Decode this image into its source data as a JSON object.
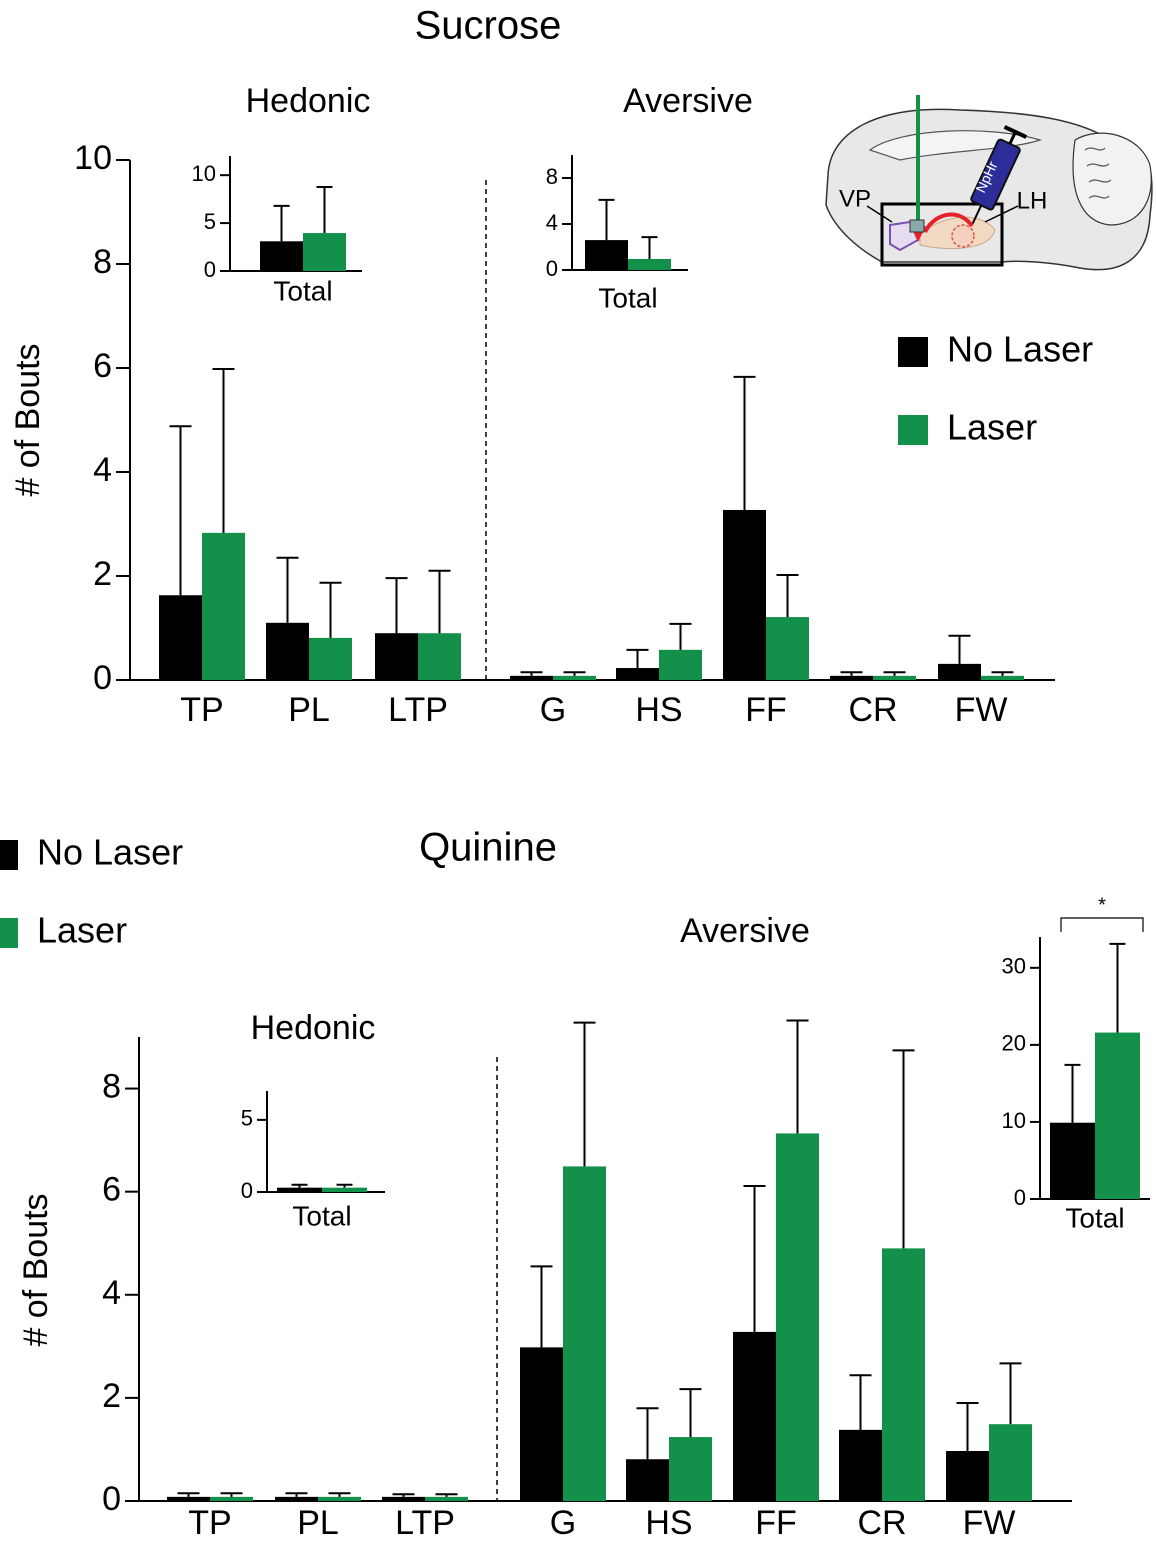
{
  "chart_data": [
    {
      "type": "bar",
      "title": "Sucrose",
      "ylabel": "# of Bouts",
      "groups": [
        {
          "label": "Hedonic",
          "categories": [
            "TP",
            "PL",
            "LTP"
          ]
        },
        {
          "label": "Aversive",
          "categories": [
            "G",
            "HS",
            "FF",
            "CR",
            "FW"
          ]
        }
      ],
      "series": [
        {
          "name": "No Laser",
          "color": "#000000",
          "values": [
            1.63,
            1.1,
            0.9,
            0.08,
            0.23,
            3.27,
            0.08,
            0.31
          ],
          "errors": [
            3.25,
            1.25,
            1.06,
            0.07,
            0.35,
            2.56,
            0.07,
            0.54
          ]
        },
        {
          "name": "Laser",
          "color": "#13904a",
          "values": [
            2.83,
            0.81,
            0.9,
            0.08,
            0.58,
            1.21,
            0.08,
            0.08
          ],
          "errors": [
            3.15,
            1.06,
            1.2,
            0.07,
            0.5,
            0.81,
            0.07,
            0.07
          ]
        }
      ],
      "ylim": [
        0,
        10
      ],
      "yticks": [
        0,
        2,
        4,
        6,
        8,
        10
      ]
    },
    {
      "type": "bar",
      "categories": [
        "Total"
      ],
      "series": [
        {
          "color": "#000000",
          "values": [
            3.1
          ],
          "errors": [
            3.7
          ]
        },
        {
          "color": "#13904a",
          "values": [
            3.96
          ],
          "errors": [
            4.8
          ]
        }
      ],
      "ylim": [
        0,
        12
      ],
      "yticks": [
        0,
        5,
        10
      ]
    },
    {
      "type": "bar",
      "categories": [
        "Total"
      ],
      "series": [
        {
          "color": "#000000",
          "values": [
            2.6
          ],
          "errors": [
            3.5
          ]
        },
        {
          "color": "#13904a",
          "values": [
            0.96
          ],
          "errors": [
            1.9
          ]
        }
      ],
      "ylim": [
        0,
        10
      ],
      "yticks": [
        0,
        4,
        8
      ]
    },
    {
      "type": "bar",
      "title": "Quinine",
      "ylabel": "# of Bouts",
      "groups": [
        {
          "label": "Hedonic",
          "categories": [
            "TP",
            "PL",
            "LTP"
          ]
        },
        {
          "label": "Aversive",
          "categories": [
            "G",
            "HS",
            "FF",
            "CR",
            "FW"
          ]
        }
      ],
      "series": [
        {
          "name": "No Laser",
          "color": "#000000",
          "values": [
            0.08,
            0.08,
            0.08,
            2.98,
            0.81,
            3.28,
            1.38,
            0.97
          ],
          "errors": [
            0.07,
            0.07,
            0.05,
            1.57,
            0.99,
            2.83,
            1.06,
            0.93
          ]
        },
        {
          "name": "Laser",
          "color": "#13904a",
          "values": [
            0.08,
            0.08,
            0.08,
            6.49,
            1.24,
            7.13,
            4.9,
            1.49
          ],
          "errors": [
            0.07,
            0.07,
            0.05,
            2.79,
            0.93,
            2.19,
            3.84,
            1.18
          ]
        }
      ],
      "ylim": [
        0,
        9
      ],
      "yticks": [
        0,
        2,
        4,
        6,
        8
      ]
    },
    {
      "type": "bar",
      "categories": [
        "Total"
      ],
      "series": [
        {
          "color": "#000000",
          "values": [
            0.3
          ],
          "errors": [
            0.2
          ]
        },
        {
          "color": "#13904a",
          "values": [
            0.3
          ],
          "errors": [
            0.2
          ]
        }
      ],
      "ylim": [
        0,
        7
      ],
      "yticks": [
        0,
        5
      ]
    },
    {
      "type": "bar",
      "categories": [
        "Total"
      ],
      "significance": "*",
      "series": [
        {
          "color": "#000000",
          "values": [
            9.9
          ],
          "errors": [
            7.5
          ]
        },
        {
          "color": "#13904a",
          "values": [
            21.6
          ],
          "errors": [
            11.5
          ]
        }
      ],
      "ylim": [
        0,
        34
      ],
      "yticks": [
        0,
        10,
        20,
        30
      ]
    }
  ],
  "diagram": {
    "labels": {
      "vp": "VP",
      "lh": "LH",
      "opsin": "NpHr"
    }
  }
}
